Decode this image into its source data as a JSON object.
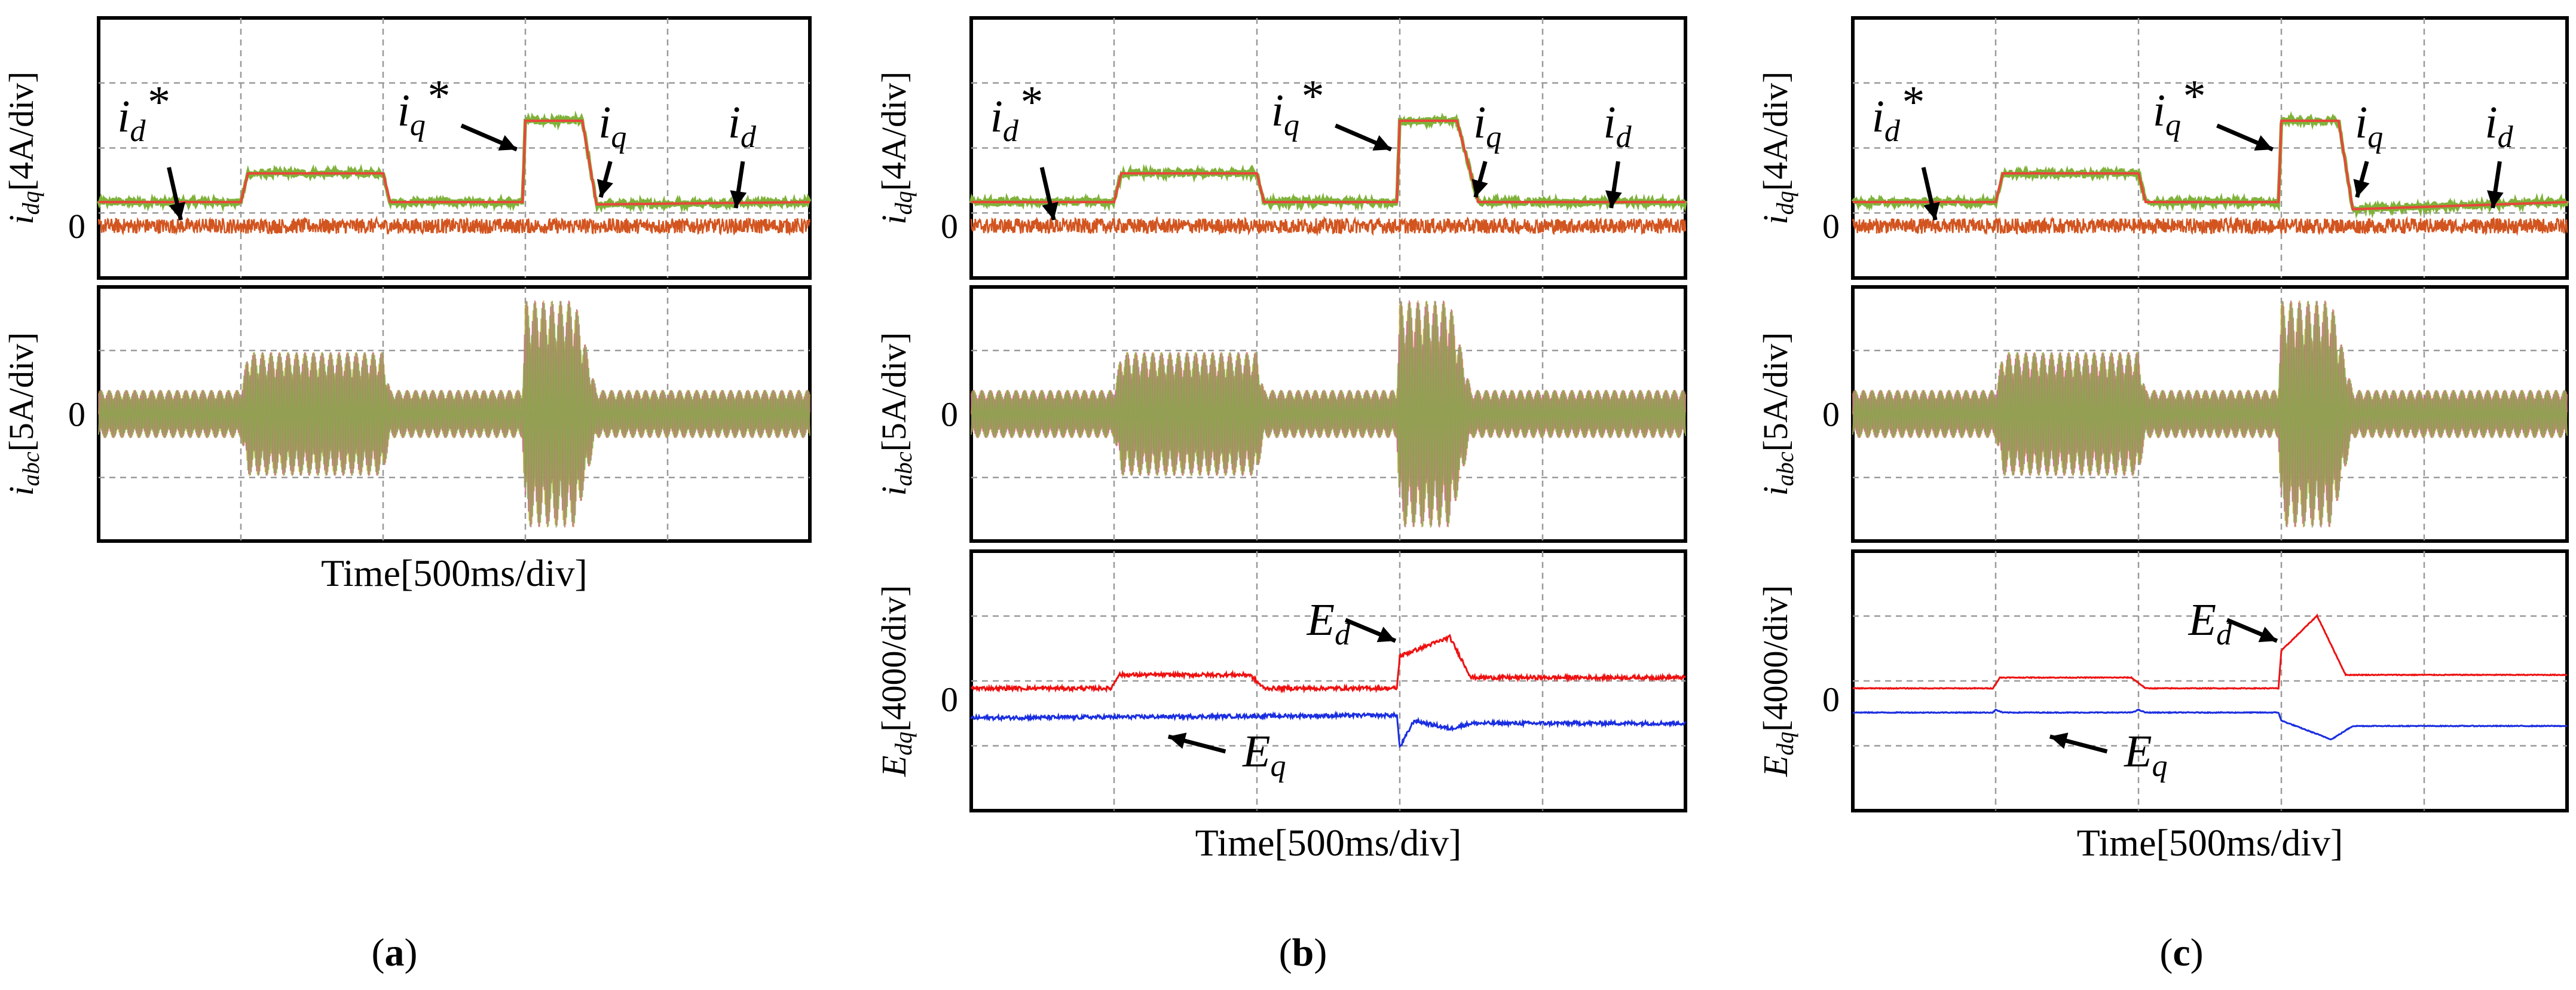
{
  "figure": {
    "panel_labels": [
      "(a)",
      "(b)",
      "(c)"
    ],
    "x_axis_label": "Time[500ms/div]",
    "colors": {
      "iq": "#e8473a",
      "iq_band": "#7fb23a",
      "id": "#d2541f",
      "abc_a": "#c9a13c",
      "abc_b": "#c46a8a",
      "abc_c": "#88a84a",
      "Ed": "#ee1111",
      "Eq": "#1a2ee0"
    }
  },
  "chart_data": [
    {
      "panel": "a",
      "type": "line",
      "subplots": [
        {
          "id": "idq",
          "ylabel": {
            "main": "i",
            "sub": "dq",
            "rest": "[4A/div]"
          },
          "zero_label": "0",
          "x_divisions": 5,
          "y_divisions": 4,
          "series": [
            {
              "name": "id*",
              "values_div": [
                0,
                0,
                0,
                0,
                0
              ]
            },
            {
              "name": "iq",
              "segments": [
                [
                  0,
                  0.5
                ],
                [
                  1.0,
                  0.5
                ],
                [
                  1.05,
                  1.1
                ],
                [
                  2.0,
                  1.1
                ],
                [
                  2.05,
                  0.5
                ],
                [
                  2.98,
                  0.5
                ],
                [
                  3.0,
                  2.2
                ],
                [
                  3.4,
                  2.2
                ],
                [
                  3.5,
                  0.45
                ],
                [
                  5.0,
                  0.5
                ]
              ]
            },
            {
              "name": "id",
              "segments": [
                [
                  0,
                  0
                ],
                [
                  5.0,
                  0
                ]
              ]
            }
          ],
          "annotations": [
            {
              "base": "i",
              "sub": "d",
              "sup": "*",
              "label": "id*"
            },
            {
              "base": "i",
              "sub": "q",
              "sup": "*",
              "label": "iq*"
            },
            {
              "base": "i",
              "sub": "q",
              "sup": "",
              "label": "iq"
            },
            {
              "base": "i",
              "sub": "d",
              "sup": "",
              "label": "id"
            }
          ]
        },
        {
          "id": "iabc",
          "ylabel": {
            "main": "i",
            "sub": "abc",
            "rest": "[5A/div]"
          },
          "zero_label": "0",
          "x_divisions": 5,
          "y_divisions": 4,
          "envelope": [
            [
              0,
              0.35
            ],
            [
              1.0,
              0.35
            ],
            [
              1.05,
              0.9
            ],
            [
              2.0,
              0.9
            ],
            [
              2.05,
              0.35
            ],
            [
              2.98,
              0.35
            ],
            [
              3.0,
              1.65
            ],
            [
              3.35,
              1.65
            ],
            [
              3.5,
              0.35
            ],
            [
              5.0,
              0.35
            ]
          ]
        }
      ]
    },
    {
      "panel": "b",
      "type": "line",
      "subplots": [
        {
          "id": "idq",
          "ylabel": {
            "main": "i",
            "sub": "dq",
            "rest": "[4A/div]"
          },
          "zero_label": "0",
          "series": [
            {
              "name": "iq",
              "segments": [
                [
                  0,
                  0.5
                ],
                [
                  1.0,
                  0.5
                ],
                [
                  1.05,
                  1.1
                ],
                [
                  2.0,
                  1.1
                ],
                [
                  2.05,
                  0.5
                ],
                [
                  2.98,
                  0.5
                ],
                [
                  3.0,
                  2.2
                ],
                [
                  3.4,
                  2.2
                ],
                [
                  3.55,
                  0.5
                ],
                [
                  5.0,
                  0.5
                ]
              ]
            },
            {
              "name": "id",
              "segments": [
                [
                  0,
                  0
                ],
                [
                  5.0,
                  0
                ]
              ]
            }
          ],
          "annotations": [
            {
              "base": "i",
              "sub": "d",
              "sup": "*",
              "label": "id*"
            },
            {
              "base": "i",
              "sub": "q",
              "sup": "*",
              "label": "iq*"
            },
            {
              "base": "i",
              "sub": "q",
              "sup": "",
              "label": "iq"
            },
            {
              "base": "i",
              "sub": "d",
              "sup": "",
              "label": "id"
            }
          ]
        },
        {
          "id": "iabc",
          "ylabel": {
            "main": "i",
            "sub": "abc",
            "rest": "[5A/div]"
          },
          "zero_label": "0",
          "envelope": [
            [
              0,
              0.35
            ],
            [
              1.0,
              0.35
            ],
            [
              1.05,
              0.9
            ],
            [
              2.0,
              0.9
            ],
            [
              2.05,
              0.35
            ],
            [
              2.98,
              0.35
            ],
            [
              3.0,
              1.65
            ],
            [
              3.35,
              1.65
            ],
            [
              3.5,
              0.35
            ],
            [
              5.0,
              0.35
            ]
          ]
        },
        {
          "id": "edq",
          "ylabel": {
            "main": "E",
            "sub": "dq",
            "rest": "[4000/div]"
          },
          "zero_label": "0",
          "series": [
            {
              "name": "Ed",
              "segments": [
                [
                  0,
                  0.2
                ],
                [
                  0.98,
                  0.2
                ],
                [
                  1.03,
                  0.45
                ],
                [
                  1.95,
                  0.45
                ],
                [
                  2.05,
                  0.2
                ],
                [
                  2.98,
                  0.2
                ],
                [
                  3.0,
                  0.8
                ],
                [
                  3.35,
                  1.15
                ],
                [
                  3.5,
                  0.4
                ],
                [
                  5.0,
                  0.4
                ]
              ]
            },
            {
              "name": "Eq",
              "segments": [
                [
                  0,
                  -0.35
                ],
                [
                  2.98,
                  -0.3
                ],
                [
                  3.0,
                  -0.9
                ],
                [
                  3.1,
                  -0.4
                ],
                [
                  3.35,
                  -0.55
                ],
                [
                  3.5,
                  -0.45
                ],
                [
                  5.0,
                  -0.45
                ]
              ]
            }
          ],
          "annotations": [
            {
              "base": "E",
              "sub": "d",
              "label": "Ed"
            },
            {
              "base": "E",
              "sub": "q",
              "label": "Eq"
            }
          ]
        }
      ]
    },
    {
      "panel": "c",
      "type": "line",
      "subplots": [
        {
          "id": "idq",
          "ylabel": {
            "main": "i",
            "sub": "dq",
            "rest": "[4A/div]"
          },
          "zero_label": "0",
          "series": [
            {
              "name": "iq",
              "segments": [
                [
                  0,
                  0.5
                ],
                [
                  1.0,
                  0.5
                ],
                [
                  1.05,
                  1.1
                ],
                [
                  2.0,
                  1.1
                ],
                [
                  2.05,
                  0.5
                ],
                [
                  2.98,
                  0.5
                ],
                [
                  3.0,
                  2.2
                ],
                [
                  3.4,
                  2.2
                ],
                [
                  3.5,
                  0.35
                ],
                [
                  5.0,
                  0.5
                ]
              ]
            },
            {
              "name": "id",
              "segments": [
                [
                  0,
                  0
                ],
                [
                  5.0,
                  0
                ]
              ]
            }
          ],
          "annotations": [
            {
              "base": "i",
              "sub": "d",
              "sup": "*",
              "label": "id*"
            },
            {
              "base": "i",
              "sub": "q",
              "sup": "*",
              "label": "iq*"
            },
            {
              "base": "i",
              "sub": "q",
              "sup": "",
              "label": "iq"
            },
            {
              "base": "i",
              "sub": "d",
              "sup": "",
              "label": "id"
            }
          ]
        },
        {
          "id": "iabc",
          "ylabel": {
            "main": "i",
            "sub": "abc",
            "rest": "[5A/div]"
          },
          "zero_label": "0",
          "envelope": [
            [
              0,
              0.35
            ],
            [
              1.0,
              0.35
            ],
            [
              1.05,
              0.9
            ],
            [
              2.0,
              0.9
            ],
            [
              2.05,
              0.35
            ],
            [
              2.98,
              0.35
            ],
            [
              3.0,
              1.65
            ],
            [
              3.35,
              1.65
            ],
            [
              3.5,
              0.35
            ],
            [
              5.0,
              0.35
            ]
          ]
        },
        {
          "id": "edq",
          "ylabel": {
            "main": "E",
            "sub": "dq",
            "rest": "[4000/div]"
          },
          "zero_label": "0",
          "series": [
            {
              "name": "Ed",
              "segments": [
                [
                  0,
                  0.2
                ],
                [
                  0.98,
                  0.2
                ],
                [
                  1.03,
                  0.4
                ],
                [
                  1.95,
                  0.4
                ],
                [
                  2.05,
                  0.2
                ],
                [
                  2.98,
                  0.2
                ],
                [
                  3.0,
                  0.9
                ],
                [
                  3.25,
                  1.55
                ],
                [
                  3.45,
                  0.45
                ],
                [
                  5.0,
                  0.45
                ]
              ]
            },
            {
              "name": "Eq",
              "segments": [
                [
                  0,
                  -0.25
                ],
                [
                  0.98,
                  -0.25
                ],
                [
                  1.0,
                  -0.2
                ],
                [
                  1.05,
                  -0.25
                ],
                [
                  1.95,
                  -0.25
                ],
                [
                  2.0,
                  -0.2
                ],
                [
                  2.05,
                  -0.25
                ],
                [
                  2.98,
                  -0.25
                ],
                [
                  3.0,
                  -0.4
                ],
                [
                  3.35,
                  -0.75
                ],
                [
                  3.5,
                  -0.5
                ],
                [
                  5.0,
                  -0.5
                ]
              ]
            }
          ],
          "annotations": [
            {
              "base": "E",
              "sub": "d",
              "label": "Ed"
            },
            {
              "base": "E",
              "sub": "q",
              "label": "Eq"
            }
          ]
        }
      ]
    }
  ]
}
